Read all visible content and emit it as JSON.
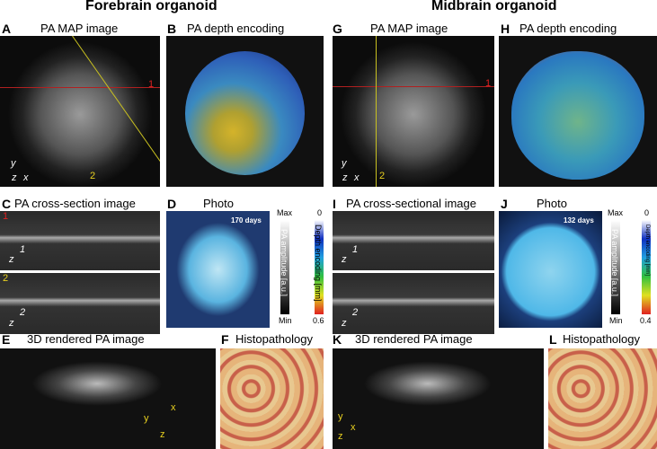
{
  "headers": {
    "left": "Forebrain organoid",
    "right": "Midbrain organoid"
  },
  "panels": [
    {
      "letter": "A",
      "title": "PA MAP image",
      "labels": [
        "1",
        "2",
        "y",
        "z",
        "x"
      ]
    },
    {
      "letter": "B",
      "title": "PA depth encoding"
    },
    {
      "letter": "C",
      "title": "PA cross-section image",
      "labels": [
        "1",
        "2",
        "z",
        "1",
        "z",
        "2"
      ]
    },
    {
      "letter": "D",
      "title": "Photo",
      "labels": [
        "170 days"
      ]
    },
    {
      "letter": "E",
      "title": "3D rendered PA image",
      "labels": [
        "y",
        "x",
        "z"
      ]
    },
    {
      "letter": "F",
      "title": "Histopathology"
    },
    {
      "letter": "G",
      "title": "PA MAP image",
      "labels": [
        "1",
        "2",
        "y",
        "z",
        "x"
      ]
    },
    {
      "letter": "H",
      "title": "PA depth encoding"
    },
    {
      "letter": "I",
      "title": "PA cross-sectional image",
      "labels": [
        "z",
        "1",
        "z",
        "2"
      ]
    },
    {
      "letter": "J",
      "title": "Photo",
      "labels": [
        "132 days"
      ]
    },
    {
      "letter": "K",
      "title": "3D rendered PA image",
      "labels": [
        "y",
        "z",
        "x"
      ]
    },
    {
      "letter": "L",
      "title": "Histopathology"
    }
  ],
  "colorbars": [
    {
      "top": "Max",
      "bottom": "Min",
      "label": "PA amplitude [a.u.]"
    },
    {
      "top": "0",
      "bottom": "0.6",
      "label": "Depth encoding [mm]"
    },
    {
      "top": "Max",
      "bottom": "Min",
      "label": "PA amplitude [a.u.]"
    },
    {
      "top": "0",
      "bottom": "0.4",
      "label": "Depth encoding [mm]"
    }
  ]
}
